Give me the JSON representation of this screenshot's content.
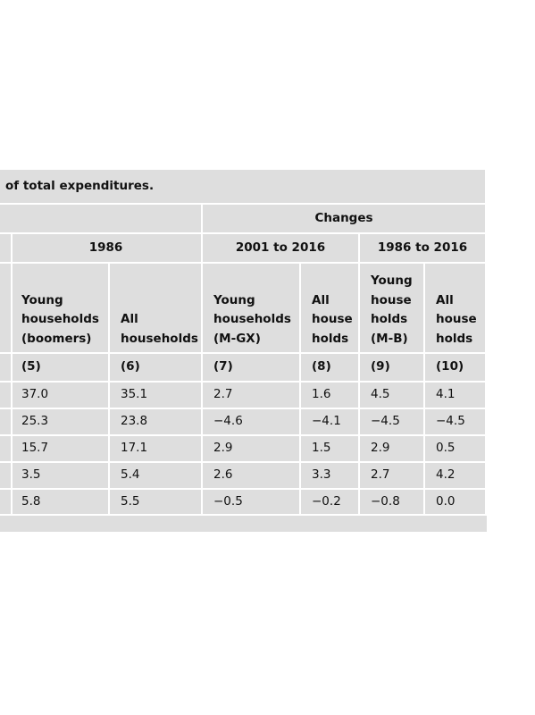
{
  "table": {
    "title": "of total expenditures.",
    "group_header": "Changes",
    "period_headers": [
      "1986",
      "2001 to 2016",
      "1986 to 2016"
    ],
    "column_headers": [
      "Young\nhouseholds\n(boomers)",
      "All\nhouseholds",
      "Young\nhouseholds\n(M-GX)",
      "All\nhouse\nholds",
      "Young\nhouse\nholds\n(M-B)",
      "All\nhouse\nholds"
    ],
    "column_numbers": [
      "(5)",
      "(6)",
      "(7)",
      "(8)",
      "(9)",
      "(10)"
    ],
    "rows": [
      [
        "37.0",
        "35.1",
        "2.7",
        "1.6",
        "4.5",
        "4.1"
      ],
      [
        "25.3",
        "23.8",
        "−4.6",
        "−4.1",
        "−4.5",
        "−4.5"
      ],
      [
        "15.7",
        "17.1",
        "2.9",
        "1.5",
        "2.9",
        "0.5"
      ],
      [
        "3.5",
        "5.4",
        "2.6",
        "3.3",
        "2.7",
        "4.2"
      ],
      [
        "5.8",
        "5.5",
        "−0.5",
        "−0.2",
        "−0.8",
        "0.0"
      ]
    ]
  }
}
